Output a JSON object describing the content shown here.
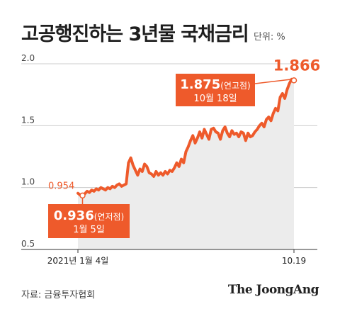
{
  "header": {
    "title": "고공행진하는 3년물 국채금리",
    "unit": "단위: %"
  },
  "footer": {
    "source": "자료: 금융투자협회",
    "brand": "The JoongAng"
  },
  "colors": {
    "line": "#ee5a2b",
    "area": "#ececec",
    "axis": "#cccccc",
    "text": "#1e1e1e"
  },
  "chart_data": {
    "type": "area",
    "title": "고공행진하는 3년물 국채금리",
    "unit": "단위: %",
    "ylim": [
      0.5,
      2.0
    ],
    "yticks": [
      "2.0",
      "1.5",
      "1.0",
      "0.5"
    ],
    "x_labels": [
      "2021년 1월 4일",
      "10.19"
    ],
    "grid": true,
    "series": [
      {
        "values": [
          0.954,
          0.94,
          0.936,
          0.95,
          0.97,
          0.96,
          0.98,
          0.97,
          0.99,
          0.98,
          1.0,
          0.99,
          0.98,
          1.0,
          0.99,
          1.01,
          1.0,
          1.02,
          1.03,
          1.01,
          1.02,
          1.03,
          1.2,
          1.24,
          1.18,
          1.14,
          1.1,
          1.15,
          1.13,
          1.19,
          1.17,
          1.12,
          1.11,
          1.09,
          1.13,
          1.1,
          1.12,
          1.1,
          1.13,
          1.11,
          1.14,
          1.13,
          1.16,
          1.2,
          1.17,
          1.23,
          1.2,
          1.29,
          1.33,
          1.38,
          1.42,
          1.36,
          1.4,
          1.45,
          1.4,
          1.47,
          1.43,
          1.39,
          1.47,
          1.48,
          1.45,
          1.44,
          1.39,
          1.46,
          1.49,
          1.44,
          1.41,
          1.46,
          1.43,
          1.44,
          1.41,
          1.45,
          1.44,
          1.38,
          1.44,
          1.41,
          1.42,
          1.45,
          1.47,
          1.5,
          1.52,
          1.49,
          1.55,
          1.57,
          1.54,
          1.6,
          1.64,
          1.62,
          1.73,
          1.76,
          1.72,
          1.79,
          1.84,
          1.875,
          1.866
        ]
      }
    ],
    "annotations": [
      {
        "label": "0.954",
        "kind": "start",
        "index": 0
      },
      {
        "value": "0.936",
        "suffix": "(연저점)",
        "date": "1월 5일",
        "kind": "low",
        "index": 2
      },
      {
        "value": "1.875",
        "suffix": "(연고점)",
        "date": "10월 18일",
        "kind": "high",
        "index": 93
      },
      {
        "label": "1.866",
        "kind": "end",
        "index": 94
      }
    ]
  }
}
